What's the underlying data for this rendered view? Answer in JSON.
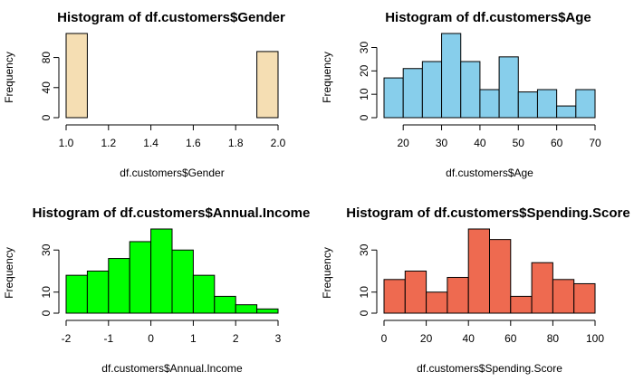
{
  "chart_data": [
    {
      "type": "bar",
      "title": "Histogram of df.customers$Gender",
      "xlabel": "df.customers$Gender",
      "ylabel": "Frequency",
      "color": "#F5DEB3",
      "xlim": [
        1.0,
        2.0
      ],
      "ylim": [
        0,
        112
      ],
      "x_ticks": [
        1.0,
        1.2,
        1.4,
        1.6,
        1.8,
        2.0
      ],
      "x_tick_labels": [
        "1.0",
        "1.2",
        "1.4",
        "1.6",
        "1.8",
        "2.0"
      ],
      "y_ticks": [
        0,
        40,
        80
      ],
      "y_tick_labels": [
        "0",
        "40",
        "80"
      ],
      "bins": [
        {
          "from": 1.0,
          "to": 1.1,
          "count": 112
        },
        {
          "from": 1.1,
          "to": 1.2,
          "count": 0
        },
        {
          "from": 1.2,
          "to": 1.3,
          "count": 0
        },
        {
          "from": 1.3,
          "to": 1.4,
          "count": 0
        },
        {
          "from": 1.4,
          "to": 1.5,
          "count": 0
        },
        {
          "from": 1.5,
          "to": 1.6,
          "count": 0
        },
        {
          "from": 1.6,
          "to": 1.7,
          "count": 0
        },
        {
          "from": 1.7,
          "to": 1.8,
          "count": 0
        },
        {
          "from": 1.8,
          "to": 1.9,
          "count": 0
        },
        {
          "from": 1.9,
          "to": 2.0,
          "count": 88
        }
      ]
    },
    {
      "type": "bar",
      "title": "Histogram of df.customers$Age",
      "xlabel": "df.customers$Age",
      "ylabel": "Frequency",
      "color": "#87CEEB",
      "xlim": [
        15,
        70
      ],
      "ylim": [
        0,
        36
      ],
      "x_ticks": [
        20,
        30,
        40,
        50,
        60,
        70
      ],
      "x_tick_labels": [
        "20",
        "30",
        "40",
        "50",
        "60",
        "70"
      ],
      "y_ticks": [
        0,
        10,
        20,
        30
      ],
      "y_tick_labels": [
        "0",
        "10",
        "20",
        "30"
      ],
      "bins": [
        {
          "from": 15,
          "to": 20,
          "count": 17
        },
        {
          "from": 20,
          "to": 25,
          "count": 21
        },
        {
          "from": 25,
          "to": 30,
          "count": 24
        },
        {
          "from": 30,
          "to": 35,
          "count": 36
        },
        {
          "from": 35,
          "to": 40,
          "count": 24
        },
        {
          "from": 40,
          "to": 45,
          "count": 12
        },
        {
          "from": 45,
          "to": 50,
          "count": 26
        },
        {
          "from": 50,
          "to": 55,
          "count": 11
        },
        {
          "from": 55,
          "to": 60,
          "count": 12
        },
        {
          "from": 60,
          "to": 65,
          "count": 5
        },
        {
          "from": 65,
          "to": 70,
          "count": 12
        }
      ]
    },
    {
      "type": "bar",
      "title": "Histogram of df.customers$Annual.Income",
      "xlabel": "df.customers$Annual.Income",
      "ylabel": "Frequency",
      "color": "#00FF00",
      "xlim": [
        -2,
        3
      ],
      "ylim": [
        0,
        40
      ],
      "x_ticks": [
        -2,
        -1,
        0,
        1,
        2,
        3
      ],
      "x_tick_labels": [
        "-2",
        "-1",
        "0",
        "1",
        "2",
        "3"
      ],
      "y_ticks": [
        0,
        10,
        30
      ],
      "y_tick_labels": [
        "0",
        "10",
        "30"
      ],
      "bins": [
        {
          "from": -2.0,
          "to": -1.5,
          "count": 18
        },
        {
          "from": -1.5,
          "to": -1.0,
          "count": 20
        },
        {
          "from": -1.0,
          "to": -0.5,
          "count": 26
        },
        {
          "from": -0.5,
          "to": 0.0,
          "count": 34
        },
        {
          "from": 0.0,
          "to": 0.5,
          "count": 40
        },
        {
          "from": 0.5,
          "to": 1.0,
          "count": 30
        },
        {
          "from": 1.0,
          "to": 1.5,
          "count": 18
        },
        {
          "from": 1.5,
          "to": 2.0,
          "count": 8
        },
        {
          "from": 2.0,
          "to": 2.5,
          "count": 4
        },
        {
          "from": 2.5,
          "to": 3.0,
          "count": 2
        }
      ]
    },
    {
      "type": "bar",
      "title": "Histogram of df.customers$Spending.Score",
      "xlabel": "df.customers$Spending.Score",
      "ylabel": "Frequency",
      "color": "#EE6A50",
      "xlim": [
        0,
        100
      ],
      "ylim": [
        0,
        40
      ],
      "x_ticks": [
        0,
        20,
        40,
        60,
        80,
        100
      ],
      "x_tick_labels": [
        "0",
        "20",
        "40",
        "60",
        "80",
        "100"
      ],
      "y_ticks": [
        0,
        10,
        30
      ],
      "y_tick_labels": [
        "0",
        "10",
        "30"
      ],
      "bins": [
        {
          "from": 0,
          "to": 10,
          "count": 16
        },
        {
          "from": 10,
          "to": 20,
          "count": 20
        },
        {
          "from": 20,
          "to": 30,
          "count": 10
        },
        {
          "from": 30,
          "to": 40,
          "count": 17
        },
        {
          "from": 40,
          "to": 50,
          "count": 40
        },
        {
          "from": 50,
          "to": 60,
          "count": 35
        },
        {
          "from": 60,
          "to": 70,
          "count": 8
        },
        {
          "from": 70,
          "to": 80,
          "count": 24
        },
        {
          "from": 80,
          "to": 90,
          "count": 16
        },
        {
          "from": 90,
          "to": 100,
          "count": 14
        }
      ]
    }
  ]
}
